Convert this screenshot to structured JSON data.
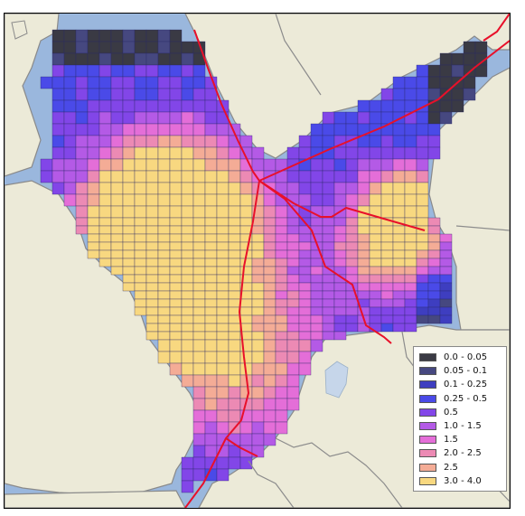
{
  "legend": {
    "items": [
      {
        "label": "0.0 - 0.05",
        "color": "#3a3a44"
      },
      {
        "label": "0.05 - 0.1",
        "color": "#464880"
      },
      {
        "label": "0.1 - 0.25",
        "color": "#3e3ec0"
      },
      {
        "label": "0.25 - 0.5",
        "color": "#4a4ae8"
      },
      {
        "label": "0.5",
        "color": "#8246e8"
      },
      {
        "label": "1.0 - 1.5",
        "color": "#b45ae6"
      },
      {
        "label": "1.5",
        "color": "#e46ed8"
      },
      {
        "label": "2.0 - 2.5",
        "color": "#ec8ab4"
      },
      {
        "label": "2.5",
        "color": "#f4ac96"
      },
      {
        "label": "3.0 - 4.0",
        "color": "#f8d880"
      }
    ]
  },
  "colors": {
    "sea": "#9ab7dd",
    "land": "#ecead8",
    "coast": "#8a8a8a",
    "borders": "#8c8c8c",
    "routes": "#e8102a"
  }
}
